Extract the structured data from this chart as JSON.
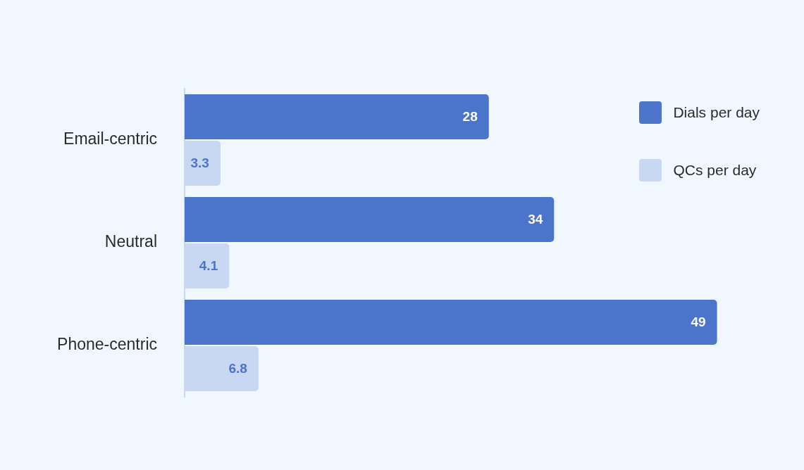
{
  "chart_data": {
    "type": "bar",
    "orientation": "horizontal",
    "categories": [
      "Email-centric",
      "Neutral",
      "Phone-centric"
    ],
    "series": [
      {
        "name": "Dials per day",
        "color": "#4d74cd",
        "values": [
          28,
          34,
          49
        ]
      },
      {
        "name": "QCs per day",
        "color": "#c8d7f2",
        "values": [
          3.3,
          4.1,
          6.8
        ]
      }
    ],
    "data_labels": true,
    "legend": "top right",
    "tick_labels": "y"
  }
}
